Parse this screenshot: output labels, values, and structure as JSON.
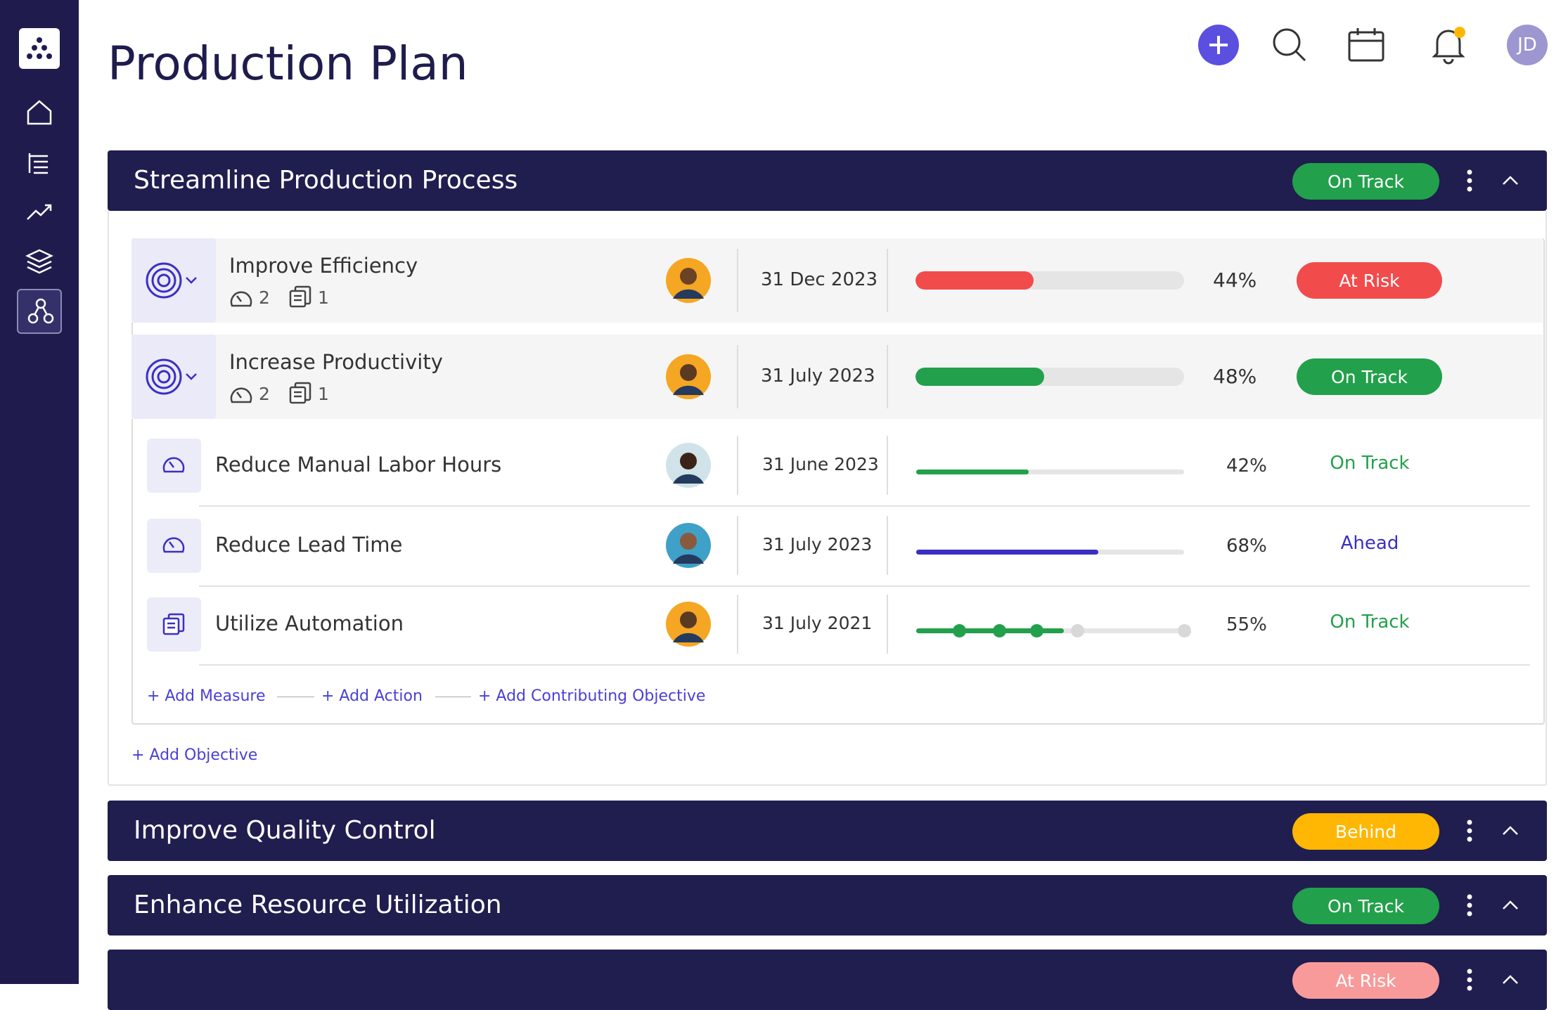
{
  "header": {
    "title": "Production Plan",
    "avatar": "JD"
  },
  "groups": [
    {
      "title": "Streamline Production Process",
      "status": "On Track",
      "status_color": "#22a04b",
      "objectives": [
        {
          "name": "Improve Efficiency",
          "measures": 2,
          "actions": 1,
          "date": "31 Dec 2023",
          "progress": 44,
          "progress_label": "44%",
          "status": "At Risk",
          "color": "#f24b4b"
        },
        {
          "name": "Increase Productivity",
          "measures": 2,
          "actions": 1,
          "date": "31 July 2023",
          "progress": 48,
          "progress_label": "48%",
          "status": "On Track",
          "color": "#22a04b"
        }
      ],
      "key_results": [
        {
          "name": "Reduce Manual Labor Hours",
          "kind": "measure",
          "date": "31 June 2023",
          "progress": 42,
          "progress_label": "42%",
          "status": "On Track",
          "color": "#22a04b"
        },
        {
          "name": "Reduce Lead Time",
          "kind": "measure",
          "date": "31 July 2023",
          "progress": 68,
          "progress_label": "68%",
          "status": "Ahead",
          "color": "#3a2fc4"
        },
        {
          "name": "Utilize Automation",
          "kind": "action",
          "date": "31 July 2021",
          "progress": 55,
          "progress_label": "55%",
          "status": "On Track",
          "color": "#22a04b"
        }
      ],
      "links": [
        "+ Add Measure",
        "+ Add Action",
        "+ Add Contributing Objective"
      ],
      "add_objective": "+ Add Objective"
    },
    {
      "title": "Improve Quality Control",
      "status": "Behind",
      "status_color": "#ffb703"
    },
    {
      "title": "Enhance Resource Utilization",
      "status": "On Track",
      "status_color": "#22a04b"
    },
    {
      "status": "At Risk",
      "status_color": "#f99a9a"
    }
  ]
}
